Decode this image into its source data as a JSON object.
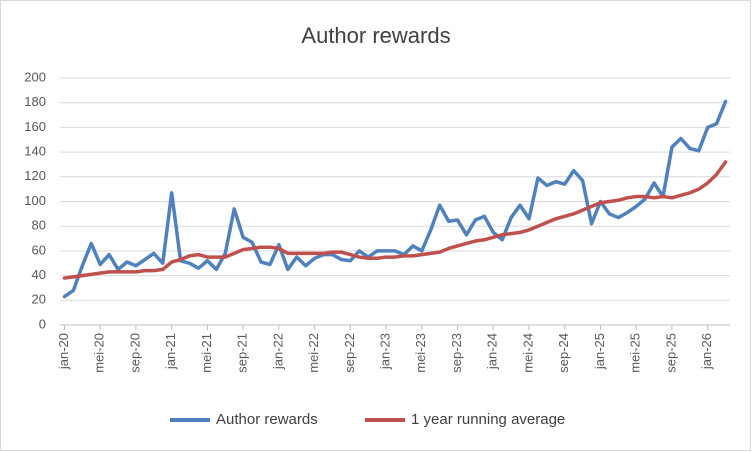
{
  "chart_data": {
    "type": "line",
    "title": "Author rewards",
    "categories": [
      "jan-20",
      null,
      null,
      null,
      "mei-20",
      null,
      null,
      null,
      "sep-20",
      null,
      null,
      null,
      "jan-21",
      null,
      null,
      null,
      "mei-21",
      null,
      null,
      null,
      "sep-21",
      null,
      null,
      null,
      "jan-22",
      null,
      null,
      null,
      "mei-22",
      null,
      null,
      null,
      "sep-22",
      null,
      null,
      null,
      "jan-23",
      null,
      null,
      null,
      "mei-23",
      null,
      null,
      null,
      "sep-23",
      null,
      null,
      null,
      "jan-24",
      null,
      null,
      null,
      "mei-24",
      null,
      null,
      null,
      "sep-24",
      null,
      null,
      null,
      "jan-25",
      null,
      null,
      null,
      "mei-25",
      null,
      null,
      null,
      "sep-25",
      null,
      null,
      null,
      "jan-26",
      null,
      null
    ],
    "series": [
      {
        "name": "Author rewards",
        "color": "#4f81bd",
        "values": [
          23,
          28,
          48,
          66,
          49,
          57,
          45,
          51,
          48,
          53,
          58,
          50,
          107,
          52,
          50,
          46,
          52,
          45,
          58,
          94,
          71,
          67,
          51,
          49,
          65,
          45,
          55,
          48,
          54,
          57,
          57,
          53,
          52,
          60,
          55,
          60,
          60,
          60,
          57,
          64,
          60,
          77,
          97,
          84,
          85,
          73,
          85,
          88,
          75,
          69,
          87,
          97,
          86,
          119,
          113,
          116,
          114,
          125,
          117,
          82,
          100,
          90,
          87,
          91,
          96,
          102,
          115,
          104,
          144,
          151,
          143,
          141,
          160,
          163,
          181
        ]
      },
      {
        "name": "1 year running average",
        "color": "#c0504d",
        "values": [
          38,
          39,
          40,
          41,
          42,
          43,
          43,
          43,
          43,
          44,
          44,
          45,
          51,
          53,
          56,
          57,
          55,
          55,
          55,
          58,
          61,
          62,
          63,
          63,
          62,
          58,
          58,
          58,
          58,
          58,
          59,
          59,
          57,
          55,
          54,
          54,
          55,
          55,
          56,
          56,
          57,
          58,
          59,
          62,
          64,
          66,
          68,
          69,
          71,
          73,
          74,
          75,
          77,
          80,
          83,
          86,
          88,
          90,
          93,
          96,
          99,
          100,
          101,
          103,
          104,
          104,
          103,
          104,
          103,
          105,
          107,
          110,
          115,
          122,
          132
        ]
      }
    ],
    "ylim": [
      0,
      200
    ],
    "yticks": [
      0,
      20,
      40,
      60,
      80,
      100,
      120,
      140,
      160,
      180,
      200
    ],
    "grid": true,
    "legend": "bottom"
  }
}
